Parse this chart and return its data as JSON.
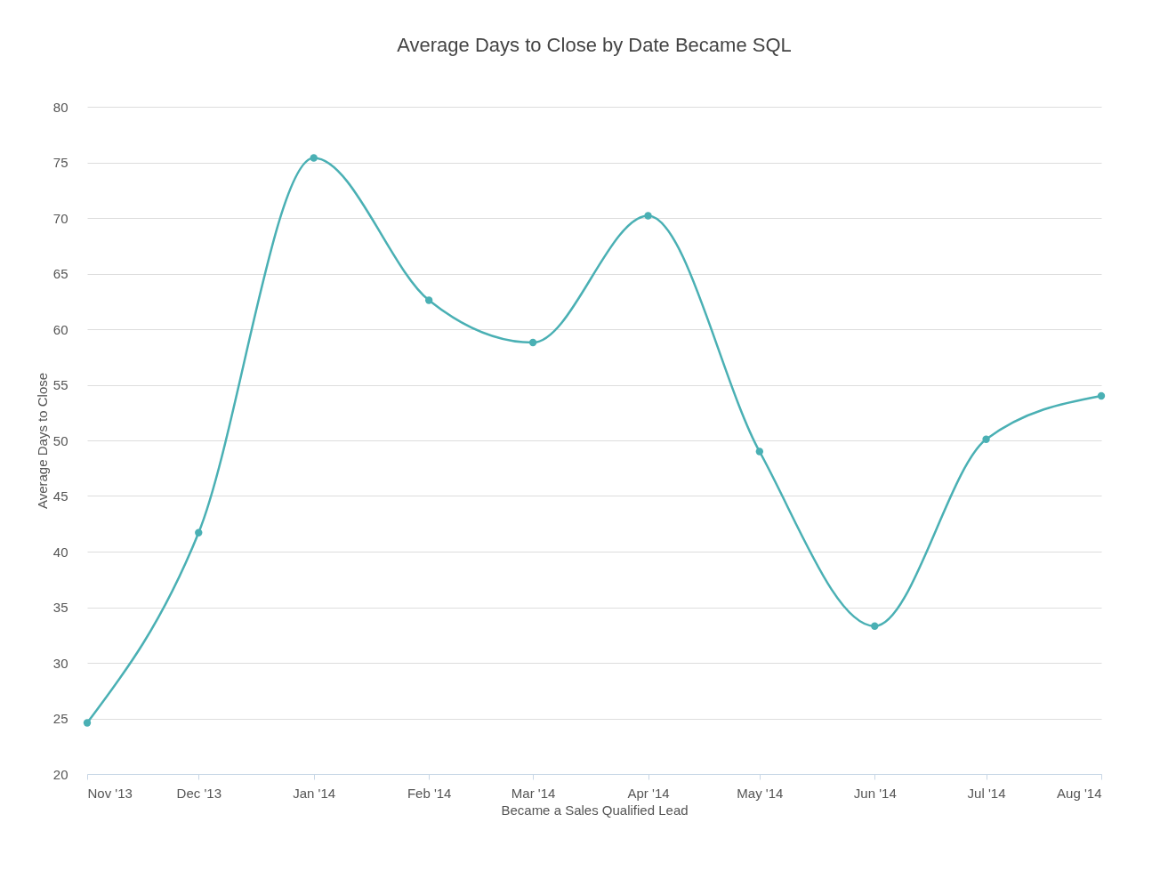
{
  "chart_data": {
    "type": "line",
    "title": "Average Days to Close by Date Became SQL",
    "xlabel": "Became a Sales Qualified Lead",
    "ylabel": "Average Days to Close",
    "x": [
      "2013-11-01",
      "2013-12-01",
      "2014-01-01",
      "2014-02-01",
      "2014-03-01",
      "2014-04-01",
      "2014-05-01",
      "2014-06-01",
      "2014-07-01",
      "2014-08-01"
    ],
    "series": [
      {
        "color": "#4ab0b4",
        "values": [
          24.6,
          41.7,
          75.4,
          62.6,
          58.8,
          70.2,
          49.0,
          33.3,
          50.1,
          54.0
        ]
      }
    ],
    "xlim": [
      "2013-11-01",
      "2014-08-01"
    ],
    "xticks": [
      {
        "value": "2013-11-01",
        "label": "Nov '13"
      },
      {
        "value": "2013-12-01",
        "label": "Dec '13"
      },
      {
        "value": "2014-01-01",
        "label": "Jan '14"
      },
      {
        "value": "2014-02-01",
        "label": "Feb '14"
      },
      {
        "value": "2014-03-01",
        "label": "Mar '14"
      },
      {
        "value": "2014-04-01",
        "label": "Apr '14"
      },
      {
        "value": "2014-05-01",
        "label": "May '14"
      },
      {
        "value": "2014-06-01",
        "label": "Jun '14"
      },
      {
        "value": "2014-07-01",
        "label": "Jul '14"
      },
      {
        "value": "2014-08-01",
        "label": "Aug '14"
      }
    ],
    "ylim": [
      20,
      80
    ],
    "yticks": [
      20,
      25,
      30,
      35,
      40,
      45,
      50,
      55,
      60,
      65,
      70,
      75,
      80
    ],
    "grid": "y",
    "marker": "circle",
    "line_style": "solid"
  }
}
